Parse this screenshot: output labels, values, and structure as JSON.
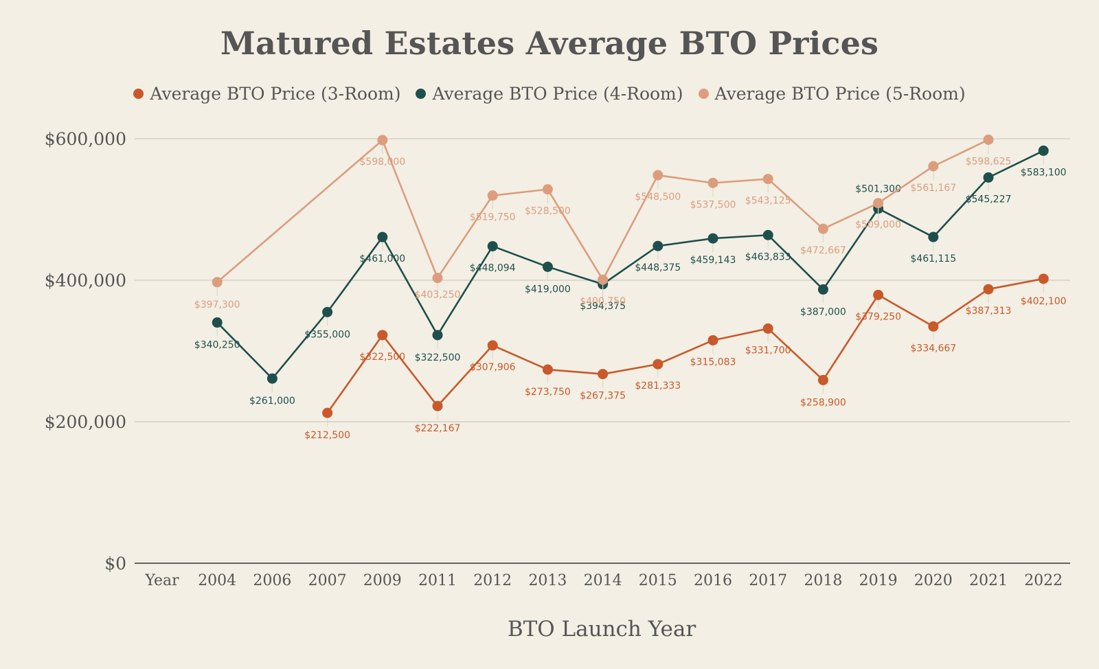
{
  "chart_data": {
    "type": "line",
    "title": "Matured Estates Average BTO Prices",
    "xlabel": "BTO Launch Year",
    "ylabel": "",
    "categories": [
      "Year",
      "2004",
      "2006",
      "2007",
      "2009",
      "2011",
      "2012",
      "2013",
      "2014",
      "2015",
      "2016",
      "2017",
      "2018",
      "2019",
      "2020",
      "2021",
      "2022"
    ],
    "ylim": [
      0,
      600000
    ],
    "yticks": [
      0,
      200000,
      400000,
      600000
    ],
    "ytick_labels": [
      "$0",
      "$200,000",
      "$400,000",
      "$600,000"
    ],
    "grid": true,
    "legend_position": "top",
    "series": [
      {
        "name": "Average BTO Price (3-Room)",
        "color": "#c9582a",
        "values": [
          null,
          null,
          null,
          212500,
          322500,
          222167,
          307906,
          273750,
          267375,
          281333,
          315083,
          331700,
          258900,
          379250,
          334667,
          387313,
          402100
        ],
        "labels": [
          null,
          null,
          null,
          "$212,500",
          "$322,500",
          "$222,167",
          "$307,906",
          "$273,750",
          "$267,375",
          "$281,333",
          "$315,083",
          "$331,700",
          "$258,900",
          "$379,250",
          "$334,667",
          "$387,313",
          "$402,100"
        ]
      },
      {
        "name": "Average BTO Price (4-Room)",
        "color": "#1f4f4c",
        "values": [
          null,
          340250,
          261000,
          355000,
          461000,
          322500,
          448094,
          419000,
          394375,
          448375,
          459143,
          463833,
          387000,
          501300,
          461115,
          545227,
          583100
        ],
        "labels": [
          null,
          "$340,250",
          "$261,000",
          "$355,000",
          "$461,000",
          "$322,500",
          "$448,094",
          "$419,000",
          "$394,375",
          "$448,375",
          "$459,143",
          "$463,833",
          "$387,000",
          "$501,300",
          "$461,115",
          "$545,227",
          "$583,100"
        ]
      },
      {
        "name": "Average BTO Price (5-Room)",
        "color": "#dc9d7e",
        "values": [
          null,
          397300,
          null,
          null,
          598000,
          403250,
          519750,
          528500,
          400750,
          548500,
          537500,
          543125,
          472667,
          509000,
          561167,
          598625,
          null
        ],
        "labels": [
          null,
          "$397,300",
          null,
          null,
          "$598,000",
          "$403,250",
          "$519,750",
          "$528,500",
          "$400,750",
          "$548,500",
          "$537,500",
          "$543,125",
          "$472,667",
          "$509,000",
          "$561,167",
          "$598,625",
          null
        ]
      }
    ]
  }
}
